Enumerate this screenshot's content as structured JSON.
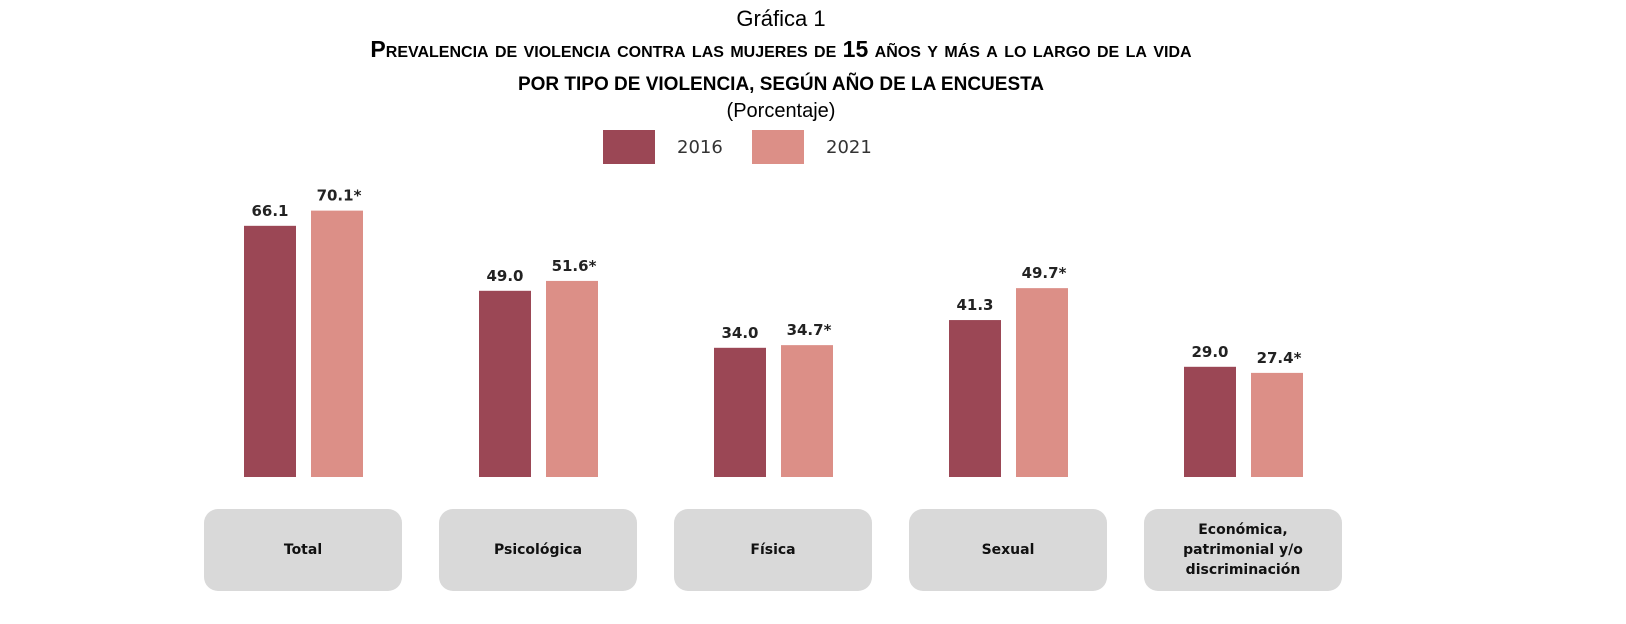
{
  "chart_data": {
    "type": "bar",
    "supertitle": "Gráfica 1",
    "title_line1": "Prevalencia de violencia contra las mujeres de 15 años y más a lo largo de la vida",
    "title_line2": "POR TIPO DE VIOLENCIA, SEGÚN AÑO DE LA ENCUESTA",
    "subtitle": "(Porcentaje)",
    "categories": [
      "Total",
      "Psicológica",
      "Física",
      "Sexual",
      "Económica,\npatrimonial y/o\ndiscriminación"
    ],
    "series": [
      {
        "name": "2016",
        "color": "#9b4755",
        "values": [
          66.1,
          49.0,
          34.0,
          41.3,
          29.0
        ],
        "labels": [
          "66.1",
          "49.0",
          "34.0",
          "41.3",
          "29.0"
        ]
      },
      {
        "name": "2021",
        "color": "#dc8f87",
        "values": [
          70.1,
          51.6,
          34.7,
          49.7,
          27.4
        ],
        "labels": [
          "70.1*",
          "51.6*",
          "34.7*",
          "49.7*",
          "27.4*"
        ]
      }
    ],
    "legend_position": "top-center",
    "grid": false,
    "ylim": [
      0,
      75
    ]
  }
}
